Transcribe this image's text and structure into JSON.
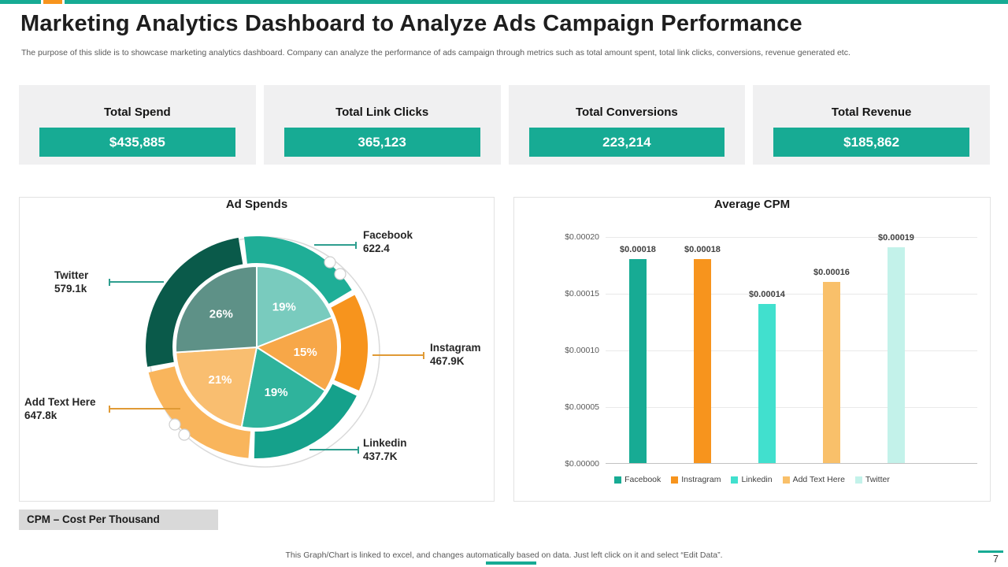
{
  "accent": {
    "teal": "#17AB94",
    "orange": "#F7941D"
  },
  "slide": {
    "title": "Marketing Analytics Dashboard to Analyze Ads Campaign Performance",
    "subtitle": "The purpose of this slide is to showcase marketing analytics dashboard. Company can analyze the performance of ads campaign through metrics such as total amount spent, total link clicks, conversions, revenue generated etc.",
    "cpm_note": "CPM – Cost Per Thousand",
    "footer": "This Graph/Chart is linked to excel,  and changes automatically based on data. Just left click on it and select “Edit Data”.",
    "page_number": "7"
  },
  "kpis": [
    {
      "label": "Total Spend",
      "value": "$435,885"
    },
    {
      "label": "Total Link Clicks",
      "value": "365,123"
    },
    {
      "label": "Total Conversions",
      "value": "223,214"
    },
    {
      "label": "Total Revenue",
      "value": "$185,862"
    }
  ],
  "chart_data": [
    {
      "type": "pie",
      "title": "Ad Spends",
      "slices": [
        {
          "label": "Facebook",
          "value_text": "622.4",
          "percent": 19,
          "color": "#79CBBE",
          "ring_color": "#1FAE97"
        },
        {
          "label": "Instagram",
          "value_text": "467.9K",
          "percent": 15,
          "color": "#F7A748",
          "ring_color": "#F7941D"
        },
        {
          "label": "Linkedin",
          "value_text": "437.7K",
          "percent": 19,
          "color": "#2FB39C",
          "ring_color": "#15A18B"
        },
        {
          "label": "Add  Text Here",
          "value_text": "647.8k",
          "percent": 21,
          "color": "#F9BE70",
          "ring_color": "#F9B55C"
        },
        {
          "label": "Twitter",
          "value_text": "579.1k",
          "percent": 26,
          "color": "#5E9187",
          "ring_color": "#0A5A4A"
        }
      ]
    },
    {
      "type": "bar",
      "title": "Average CPM",
      "categories": [
        "Facebook",
        "Instragram",
        "Linkedin",
        "Add Text Here",
        "Twitter"
      ],
      "values": [
        0.00018,
        0.00018,
        0.00014,
        0.00016,
        0.00019
      ],
      "value_labels": [
        "$0.00018",
        "$0.00018",
        "$0.00014",
        "$0.00016",
        "$0.00019"
      ],
      "colors": [
        "#17AB94",
        "#F7941D",
        "#41E0CE",
        "#F9C06A",
        "#C3F2EA"
      ],
      "ylim": [
        0,
        0.0002
      ],
      "yticks": [
        {
          "value": 0.0002,
          "label": "$0.00020"
        },
        {
          "value": 0.00015,
          "label": "$0.00015"
        },
        {
          "value": 0.0001,
          "label": "$0.00010"
        },
        {
          "value": 5e-05,
          "label": "$0.00005"
        },
        {
          "value": 0,
          "label": "$0.00000"
        }
      ],
      "legend": [
        "Facebook",
        "Instragram",
        "Linkedin",
        "Add Text Here",
        "Twitter"
      ]
    }
  ]
}
